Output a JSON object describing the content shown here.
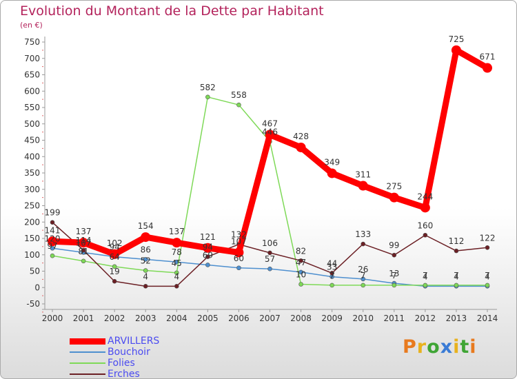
{
  "title": "Evolution du Montant de la Dette par Habitant",
  "subtitle": "(en €)",
  "logo": {
    "text": "Proxiti",
    "colors": [
      "#e87a1e",
      "#e8b21e",
      "#3fa535",
      "#3a7bd5",
      "#e8b21e",
      "#3fa535",
      "#e87a1e"
    ]
  },
  "chart_data": {
    "type": "line",
    "x": [
      2000,
      2001,
      2002,
      2003,
      2004,
      2005,
      2006,
      2007,
      2008,
      2009,
      2010,
      2011,
      2012,
      2013,
      2014
    ],
    "ylim": [
      -50,
      750
    ],
    "yticks": [
      -50,
      0,
      50,
      100,
      150,
      200,
      250,
      300,
      350,
      400,
      450,
      500,
      550,
      600,
      650,
      700,
      750
    ],
    "grid": false,
    "legend_position": "bottom-left",
    "series": [
      {
        "name": "ARVILLERS",
        "color": "#ff0000",
        "values": [
          141,
          137,
          102,
          154,
          137,
          121,
          107,
          467,
          428,
          349,
          311,
          275,
          244,
          725,
          671
        ],
        "labels": [
          "141",
          "137",
          "102",
          "154",
          "137",
          "121",
          "107",
          "467",
          "428",
          "349",
          "311",
          "275",
          "244",
          "725",
          "671"
        ]
      },
      {
        "name": "Bouchoir",
        "color": "#4d8fcf",
        "values": [
          120,
          107,
          94,
          86,
          78,
          69,
          60,
          57,
          47,
          33,
          26,
          13,
          4,
          4,
          4
        ],
        "labels": [
          "120",
          "107",
          "94",
          "86",
          "78",
          "69",
          "60",
          "57",
          "47",
          "33",
          "26",
          "13",
          "4",
          "4",
          "4"
        ]
      },
      {
        "name": "Folies",
        "color": "#7ed957",
        "values": [
          97,
          81,
          64,
          52,
          45,
          582,
          558,
          446,
          10,
          7,
          7,
          7,
          7,
          7,
          7
        ],
        "labels": [
          "97",
          "81",
          "64",
          "52",
          "45",
          "582",
          "558",
          "446",
          "10",
          "7",
          "7",
          "7",
          "7",
          "7",
          "7"
        ]
      },
      {
        "name": "Erches",
        "color": "#6b1f24",
        "values": [
          199,
          114,
          19,
          4,
          4,
          94,
          132,
          106,
          82,
          44,
          133,
          99,
          160,
          112,
          122
        ],
        "labels": [
          "199",
          "114",
          "19",
          "4",
          "4",
          "94",
          "132",
          "106",
          "82",
          "44",
          "133",
          "99",
          "160",
          "112",
          "122"
        ]
      }
    ]
  }
}
